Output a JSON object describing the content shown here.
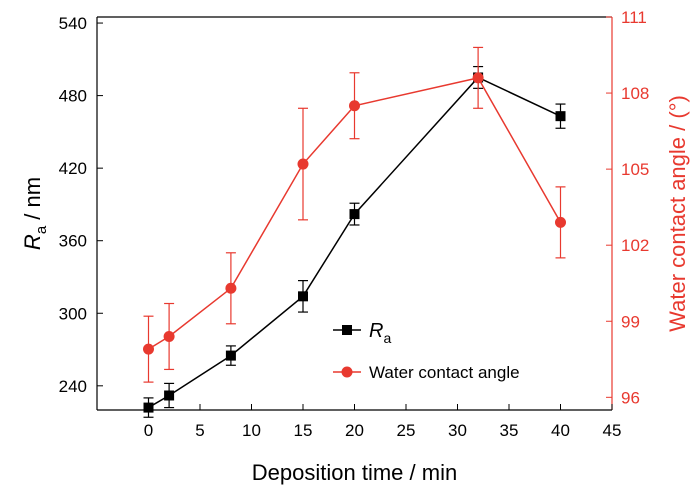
{
  "chart_data": {
    "type": "line",
    "xlabel": "Deposition time / min",
    "ylabel_main": "R",
    "ylabel_sub": "a",
    "ylabel_unit": " / nm",
    "y2label": "Water contact angle / (°)",
    "xlim": [
      -5,
      45
    ],
    "ylim": [
      220,
      545
    ],
    "y2lim": [
      95.5,
      111
    ],
    "x_ticks": [
      0,
      5,
      10,
      15,
      20,
      25,
      30,
      35,
      40,
      45
    ],
    "x_tick_labels": [
      "0",
      "5",
      "10",
      "15",
      "20",
      "25",
      "30",
      "35",
      "40",
      "45"
    ],
    "y_ticks": [
      240,
      300,
      360,
      420,
      480,
      540
    ],
    "y_tick_labels": [
      "240",
      "300",
      "360",
      "420",
      "480",
      "540"
    ],
    "y2_ticks": [
      96,
      99,
      102,
      105,
      108,
      111
    ],
    "y2_tick_labels": [
      "96",
      "99",
      "102",
      "105",
      "108",
      "111"
    ],
    "grid": false,
    "legend_position": "bottom-right",
    "colors": {
      "ra": "#000000",
      "wca": "#e8392f"
    },
    "series": [
      {
        "name": "R",
        "name_sub": "a",
        "axis": "left",
        "marker": "square",
        "x": [
          0,
          2,
          8,
          15,
          20,
          32,
          40
        ],
        "y": [
          222,
          232,
          265,
          314,
          382,
          495,
          463
        ],
        "err": [
          8,
          10,
          8,
          13,
          9,
          9,
          10
        ]
      },
      {
        "name": "Water contact angle",
        "axis": "right",
        "marker": "circle",
        "x": [
          0,
          2,
          8,
          15,
          20,
          32,
          40
        ],
        "y": [
          97.9,
          98.4,
          100.3,
          105.2,
          107.5,
          108.6,
          102.9
        ],
        "err": [
          1.3,
          1.3,
          1.4,
          2.2,
          1.3,
          1.2,
          1.4
        ]
      }
    ]
  }
}
